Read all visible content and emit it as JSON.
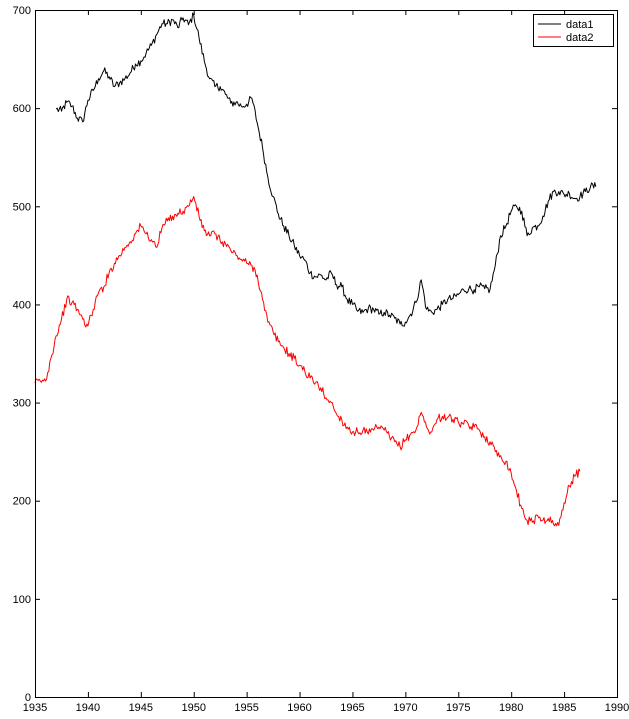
{
  "chart_data": {
    "type": "line",
    "title": "",
    "xlabel": "",
    "ylabel": "",
    "xlim": [
      1935,
      1990
    ],
    "ylim": [
      0,
      700
    ],
    "xticks": [
      1935,
      1940,
      1945,
      1950,
      1955,
      1960,
      1965,
      1970,
      1975,
      1980,
      1985,
      1990
    ],
    "yticks": [
      0,
      100,
      200,
      300,
      400,
      500,
      600,
      700
    ],
    "xtick_labels": [
      "1935",
      "1940",
      "1945",
      "1950",
      "1955",
      "1960",
      "1965",
      "1970",
      "1975",
      "1980",
      "1985",
      "1990"
    ],
    "ytick_labels": [
      "0",
      "100",
      "200",
      "300",
      "400",
      "500",
      "600",
      "700"
    ],
    "grid": false,
    "legend": {
      "placement": "top-right",
      "entries": [
        "data1",
        "data2"
      ]
    },
    "series": [
      {
        "name": "data1",
        "color": "#000000",
        "x": [
          1937.0,
          1937.5,
          1938.0,
          1938.5,
          1939.0,
          1939.5,
          1940.0,
          1940.5,
          1941.0,
          1941.5,
          1942.0,
          1942.5,
          1943.0,
          1943.5,
          1944.0,
          1944.5,
          1945.0,
          1945.5,
          1946.0,
          1946.5,
          1947.0,
          1947.5,
          1948.0,
          1948.5,
          1949.0,
          1949.5,
          1950.0,
          1950.5,
          1951.0,
          1951.5,
          1952.0,
          1952.5,
          1953.0,
          1953.5,
          1954.0,
          1954.5,
          1955.0,
          1955.5,
          1956.0,
          1956.5,
          1957.0,
          1957.5,
          1958.0,
          1958.5,
          1959.0,
          1959.5,
          1960.0,
          1960.5,
          1961.0,
          1961.5,
          1962.0,
          1962.5,
          1963.0,
          1963.5,
          1964.0,
          1964.5,
          1965.0,
          1965.5,
          1966.0,
          1966.5,
          1967.0,
          1967.5,
          1968.0,
          1968.5,
          1969.0,
          1969.5,
          1970.0,
          1970.5,
          1971.0,
          1971.5,
          1972.0,
          1972.5,
          1973.0,
          1973.5,
          1974.0,
          1974.5,
          1975.0,
          1975.5,
          1976.0,
          1976.5,
          1977.0,
          1977.5,
          1978.0,
          1978.5,
          1979.0,
          1979.5,
          1980.0,
          1980.5,
          1981.0,
          1981.5,
          1982.0,
          1982.5,
          1983.0,
          1983.5,
          1984.0,
          1984.5,
          1985.0,
          1985.5,
          1986.0,
          1986.5,
          1987.0,
          1987.5,
          1988.0
        ],
        "values": [
          599,
          597,
          606,
          602,
          590,
          586,
          608,
          618,
          630,
          638,
          632,
          622,
          626,
          630,
          636,
          645,
          648,
          656,
          664,
          675,
          686,
          686,
          690,
          682,
          692,
          685,
          695,
          672,
          648,
          630,
          622,
          622,
          614,
          605,
          606,
          602,
          604,
          610,
          585,
          560,
          530,
          510,
          492,
          480,
          470,
          460,
          450,
          445,
          432,
          428,
          430,
          425,
          432,
          420,
          418,
          405,
          400,
          393,
          392,
          396,
          395,
          390,
          392,
          389,
          386,
          380,
          382,
          390,
          402,
          425,
          395,
          392,
          395,
          400,
          405,
          406,
          410,
          415,
          416,
          415,
          418,
          416,
          415,
          440,
          470,
          480,
          495,
          500,
          495,
          470,
          478,
          480,
          490,
          505,
          515,
          515,
          512,
          513,
          508,
          510,
          515,
          520,
          520
        ]
      },
      {
        "name": "data2",
        "color": "#ff0000",
        "x": [
          1935.0,
          1935.5,
          1936.0,
          1936.5,
          1937.0,
          1937.5,
          1938.0,
          1938.5,
          1939.0,
          1939.5,
          1940.0,
          1940.5,
          1941.0,
          1941.5,
          1942.0,
          1942.5,
          1943.0,
          1943.5,
          1944.0,
          1944.5,
          1945.0,
          1945.5,
          1946.0,
          1946.5,
          1947.0,
          1947.5,
          1948.0,
          1948.5,
          1949.0,
          1949.5,
          1950.0,
          1950.5,
          1951.0,
          1951.5,
          1952.0,
          1952.5,
          1953.0,
          1953.5,
          1954.0,
          1954.5,
          1955.0,
          1955.5,
          1956.0,
          1956.5,
          1957.0,
          1957.5,
          1958.0,
          1958.5,
          1959.0,
          1959.5,
          1960.0,
          1960.5,
          1961.0,
          1961.5,
          1962.0,
          1962.5,
          1963.0,
          1963.5,
          1964.0,
          1964.5,
          1965.0,
          1965.5,
          1966.0,
          1966.5,
          1967.0,
          1967.5,
          1968.0,
          1968.5,
          1969.0,
          1969.5,
          1970.0,
          1970.5,
          1971.0,
          1971.5,
          1972.0,
          1972.5,
          1973.0,
          1973.5,
          1974.0,
          1974.5,
          1975.0,
          1975.5,
          1976.0,
          1976.5,
          1977.0,
          1977.5,
          1978.0,
          1978.5,
          1979.0,
          1979.5,
          1980.0,
          1980.5,
          1981.0,
          1981.5,
          1982.0,
          1982.5,
          1983.0,
          1983.5,
          1984.0,
          1984.5,
          1985.0,
          1985.5,
          1986.0,
          1986.5
        ],
        "values": [
          320,
          322,
          322,
          345,
          368,
          385,
          405,
          402,
          395,
          385,
          378,
          395,
          412,
          418,
          432,
          442,
          450,
          458,
          464,
          472,
          480,
          472,
          466,
          458,
          478,
          485,
          490,
          493,
          495,
          500,
          510,
          490,
          475,
          470,
          472,
          465,
          462,
          455,
          450,
          446,
          442,
          440,
          430,
          405,
          382,
          372,
          362,
          356,
          350,
          345,
          338,
          332,
          325,
          320,
          315,
          305,
          300,
          288,
          282,
          275,
          270,
          270,
          272,
          268,
          272,
          275,
          272,
          265,
          260,
          255,
          262,
          268,
          272,
          290,
          275,
          270,
          283,
          286,
          285,
          283,
          280,
          278,
          276,
          275,
          272,
          265,
          260,
          250,
          246,
          240,
          228,
          210,
          192,
          180,
          178,
          185,
          180,
          182,
          176,
          175,
          198,
          215,
          225,
          230
        ]
      }
    ]
  }
}
